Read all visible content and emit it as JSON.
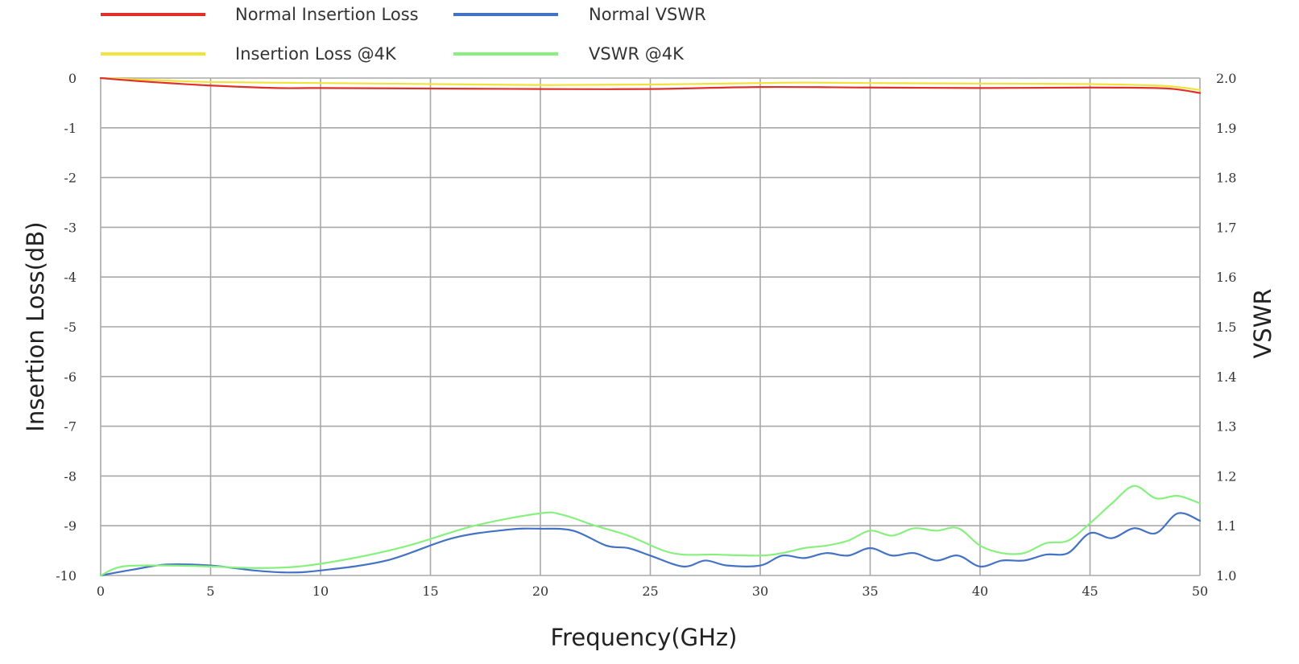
{
  "chart_data": {
    "type": "line",
    "xlabel": "Frequency(GHz)",
    "ylabel_left": "Insertion Loss(dB)",
    "ylabel_right": "VSWR",
    "xlim": [
      0,
      50
    ],
    "ylim_left": [
      -10,
      0
    ],
    "ylim_right": [
      1.0,
      2.0
    ],
    "x_ticks": [
      "0",
      "5",
      "10",
      "15",
      "20",
      "25",
      "30",
      "35",
      "40",
      "45",
      "50"
    ],
    "y_left_ticks": [
      "0",
      "-1",
      "-2",
      "-3",
      "-4",
      "-5",
      "-6",
      "-7",
      "-8",
      "-9",
      "-10"
    ],
    "y_right_ticks": [
      "2.0",
      "1.9",
      "1.8",
      "1.7",
      "1.6",
      "1.5",
      "1.4",
      "1.3",
      "1.2",
      "1.1",
      "1.0"
    ],
    "grid": true,
    "legend_position": "top-left",
    "series": [
      {
        "name": "Normal Insertion Loss",
        "axis": "left",
        "color": "#e0302a",
        "x": [
          0,
          2,
          5,
          8,
          10,
          15,
          20,
          25,
          30,
          35,
          40,
          45,
          48,
          49,
          50
        ],
        "y": [
          0.0,
          -0.07,
          -0.15,
          -0.2,
          -0.2,
          -0.21,
          -0.22,
          -0.22,
          -0.18,
          -0.19,
          -0.2,
          -0.19,
          -0.2,
          -0.23,
          -0.3
        ]
      },
      {
        "name": "Insertion Loss @4K",
        "axis": "left",
        "color": "#f2e23a",
        "x": [
          0,
          3,
          5,
          10,
          15,
          20,
          25,
          30,
          32,
          35,
          40,
          45,
          48,
          49,
          50
        ],
        "y": [
          0.0,
          -0.05,
          -0.08,
          -0.1,
          -0.12,
          -0.14,
          -0.13,
          -0.1,
          -0.09,
          -0.1,
          -0.11,
          -0.12,
          -0.15,
          -0.18,
          -0.24
        ]
      },
      {
        "name": "Normal VSWR",
        "axis": "right",
        "color": "#4472c4",
        "x": [
          0,
          1.5,
          3,
          5,
          7,
          8.5,
          10,
          13,
          16,
          18.5,
          20,
          21.5,
          23,
          24,
          25,
          26.5,
          27.5,
          28.5,
          30,
          31,
          32,
          33,
          34,
          35,
          36,
          37,
          38,
          39,
          40,
          41,
          42,
          43,
          44,
          45,
          46,
          47,
          48,
          49,
          50
        ],
        "y": [
          1.0,
          1.012,
          1.022,
          1.02,
          1.01,
          1.006,
          1.01,
          1.03,
          1.075,
          1.092,
          1.094,
          1.09,
          1.06,
          1.055,
          1.04,
          1.018,
          1.03,
          1.02,
          1.02,
          1.04,
          1.035,
          1.045,
          1.04,
          1.055,
          1.04,
          1.045,
          1.03,
          1.04,
          1.018,
          1.03,
          1.03,
          1.042,
          1.045,
          1.085,
          1.075,
          1.095,
          1.085,
          1.125,
          1.11
        ]
      },
      {
        "name": "VSWR @4K",
        "axis": "right",
        "color": "#88f07f",
        "x": [
          0,
          1,
          3,
          5,
          7,
          9,
          11.5,
          14,
          17,
          20,
          21,
          22.5,
          24,
          26,
          28,
          30,
          31,
          32,
          33,
          34,
          35,
          36,
          37,
          38,
          39,
          40,
          41,
          42,
          43,
          44,
          45,
          46,
          47,
          48,
          49,
          50
        ],
        "y": [
          1.0,
          1.018,
          1.02,
          1.018,
          1.015,
          1.018,
          1.035,
          1.06,
          1.1,
          1.125,
          1.122,
          1.1,
          1.08,
          1.045,
          1.042,
          1.04,
          1.045,
          1.055,
          1.06,
          1.07,
          1.09,
          1.08,
          1.095,
          1.09,
          1.095,
          1.06,
          1.045,
          1.045,
          1.065,
          1.07,
          1.105,
          1.145,
          1.18,
          1.155,
          1.16,
          1.145
        ]
      }
    ]
  }
}
